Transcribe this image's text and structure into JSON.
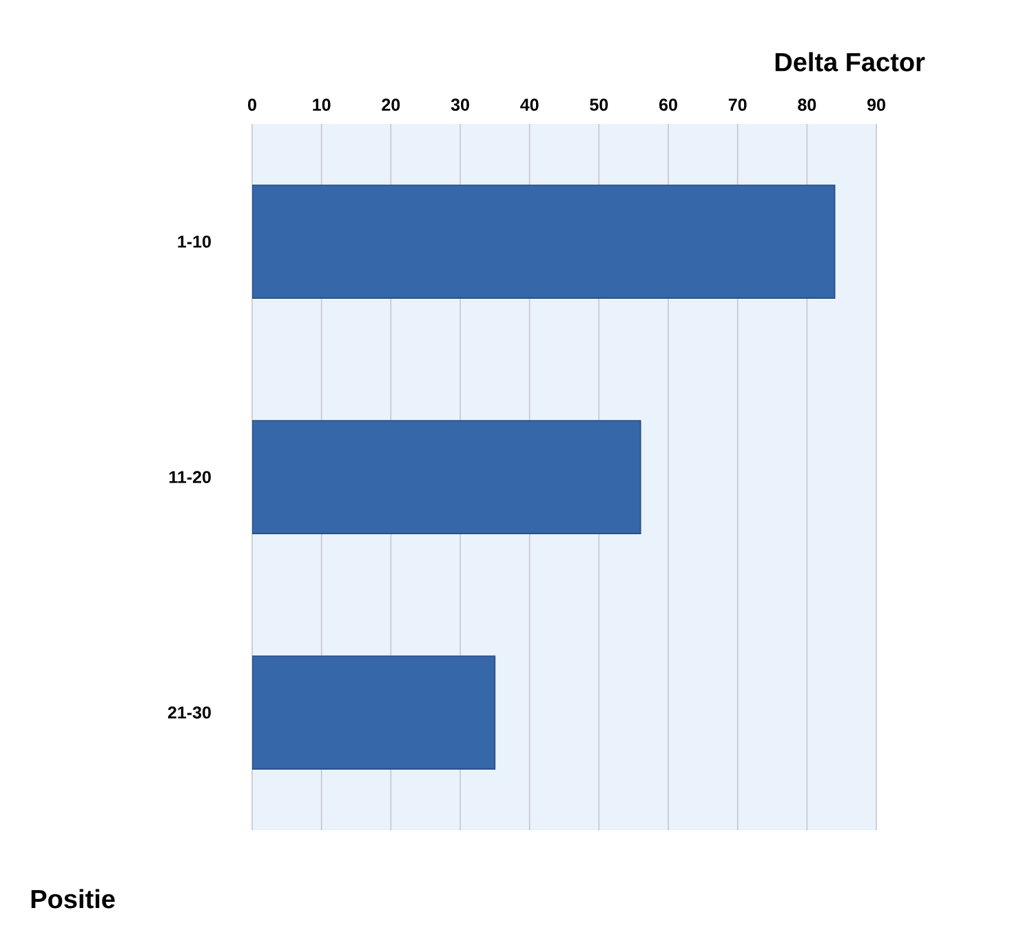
{
  "chart_data": {
    "type": "bar",
    "orientation": "horizontal",
    "xlabel": "Delta Factor",
    "ylabel": "Positie",
    "categories": [
      "1-10",
      "11-20",
      "21-30"
    ],
    "values": [
      84,
      56,
      35
    ],
    "color": "#3567a9",
    "xlim": [
      0,
      90
    ],
    "xticks": [
      0,
      10,
      20,
      30,
      40,
      50,
      60,
      70,
      80,
      90
    ],
    "grid": "x"
  }
}
